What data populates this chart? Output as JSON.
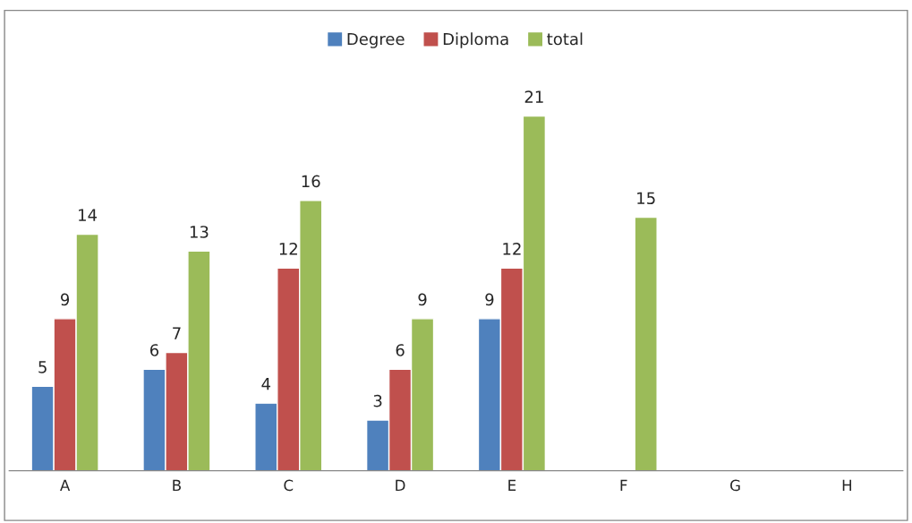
{
  "chart_data": {
    "type": "bar",
    "categories": [
      "A",
      "B",
      "C",
      "D",
      "E",
      "F",
      "G",
      "H"
    ],
    "series": [
      {
        "name": "Degree",
        "color": "#4f81bd",
        "values": [
          5,
          6,
          4,
          3,
          9,
          null,
          null,
          null
        ]
      },
      {
        "name": "Diploma",
        "color": "#c0504d",
        "values": [
          9,
          7,
          12,
          6,
          12,
          null,
          null,
          null
        ]
      },
      {
        "name": "total",
        "color": "#9bbb59",
        "values": [
          14,
          13,
          16,
          9,
          21,
          15,
          null,
          null
        ]
      }
    ],
    "data_labels": true,
    "legend": "top",
    "grid": false
  }
}
